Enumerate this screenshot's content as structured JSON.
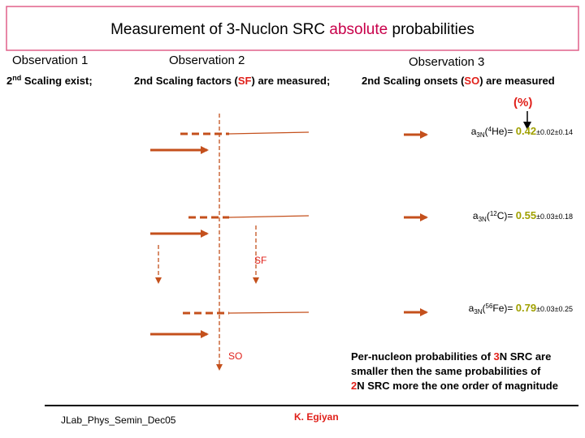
{
  "title": {
    "before": "Measurement of 3-Nuclon SRC ",
    "highlight": "absolute",
    "after": " probabilities"
  },
  "observations": [
    {
      "heading": "Observation 1",
      "text": {
        "lead": "2",
        "sup": "nd",
        "rest": " Scaling exist;"
      }
    },
    {
      "heading": "Observation 2",
      "text": {
        "before": "2nd Scaling factors (",
        "highlight": "SF",
        "after": ") are measured;"
      }
    },
    {
      "heading": "Observation 3",
      "text": {
        "before": "2nd Scaling onsets (",
        "highlight": "SO",
        "after": ") are measured"
      }
    }
  ],
  "unit": "(%)",
  "results": [
    {
      "a": "a",
      "sub": "3N",
      "open": "(",
      "mass": "4",
      "nucleus": "He)= ",
      "value": 0.42,
      "errors": "±0.02±0.14"
    },
    {
      "a": "a",
      "sub": "3N",
      "open": "(",
      "mass": "12",
      "nucleus": "C)= ",
      "value": 0.55,
      "errors": "±0.03±0.18"
    },
    {
      "a": "a",
      "sub": "3N",
      "open": "(",
      "mass": "56",
      "nucleus": "Fe)= ",
      "value": 0.79,
      "errors": "±0.03±0.25"
    }
  ],
  "labels": {
    "sf": "SF",
    "so": "SO"
  },
  "note": {
    "line1": {
      "before": "Per-nucleon probabilities of ",
      "highlight": "3",
      "after": "N SRC are"
    },
    "line2": "smaller then the same probabilities of",
    "line3": {
      "highlight": "2",
      "after": "N SRC more the one order of magnitude"
    }
  },
  "footer": {
    "left": "JLab_Phys_Semin_Dec05",
    "author": "K. Egiyan"
  }
}
